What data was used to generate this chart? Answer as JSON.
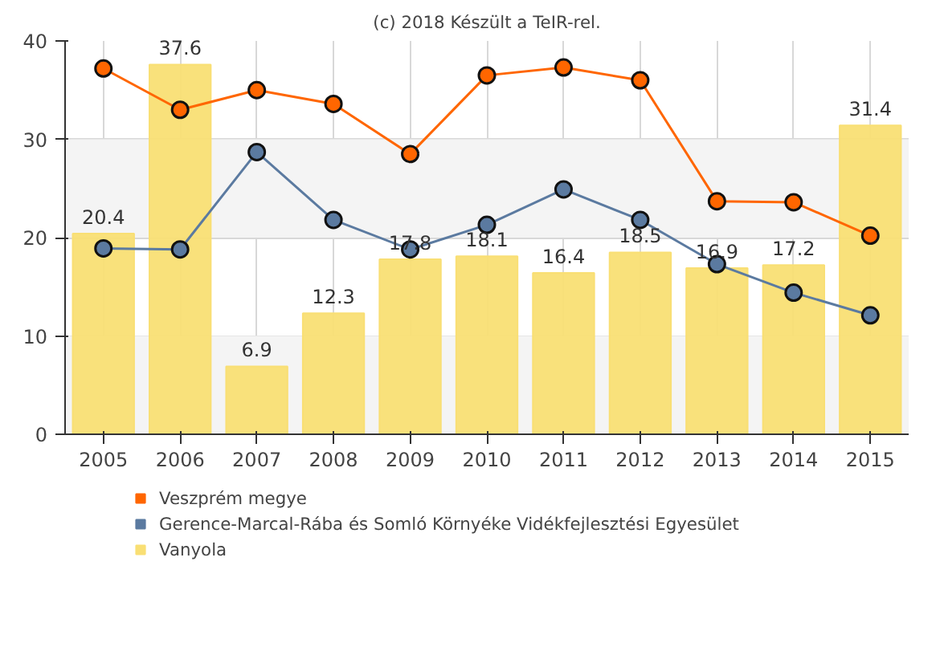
{
  "chart_data": {
    "type": "bar",
    "title": "(c) 2018 Készült a TeIR-rel.",
    "categories": [
      "2005",
      "2006",
      "2007",
      "2008",
      "2009",
      "2010",
      "2011",
      "2012",
      "2013",
      "2014",
      "2015"
    ],
    "ylim": [
      0,
      40
    ],
    "yticks": [
      0,
      10,
      20,
      30,
      40
    ],
    "grid": true,
    "legend": "bottom",
    "marker": "circle",
    "bands": [
      {
        "axis": "y",
        "from": 0,
        "to": 10,
        "color": "#f4f4f4"
      },
      {
        "axis": "y",
        "from": 20,
        "to": 30,
        "color": "#f4f4f4"
      }
    ],
    "series": [
      {
        "name": "Veszprém megye",
        "type": "line",
        "color": "#ff6600",
        "values": [
          37.2,
          33.0,
          35.0,
          33.6,
          28.5,
          36.5,
          37.3,
          36.0,
          23.7,
          23.6,
          20.2
        ]
      },
      {
        "name": "Gerence-Marcal-Rába és Somló Környéke Vidékfejlesztési Egyesület",
        "type": "line",
        "color": "#5b7aa0",
        "values": [
          18.9,
          18.8,
          28.7,
          21.8,
          18.8,
          21.3,
          24.9,
          21.8,
          17.3,
          14.4,
          12.1
        ]
      },
      {
        "name": "Vanyola",
        "color": "#f9df74",
        "values": [
          20.4,
          37.6,
          6.9,
          12.3,
          17.8,
          18.1,
          16.4,
          18.5,
          16.9,
          17.2,
          31.4
        ],
        "value_labels": [
          "20.4",
          "37.6",
          "6.9",
          "12.3",
          "17.8",
          "18.1",
          "16.4",
          "18.5",
          "16.9",
          "17.2",
          "31.4"
        ]
      }
    ]
  }
}
